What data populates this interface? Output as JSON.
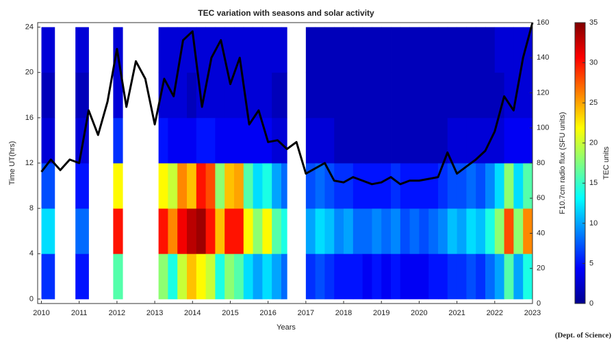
{
  "chart_data": {
    "type": "heatmap",
    "title": "TEC variation with seasons and solar activity",
    "xlabel": "Years",
    "ylabel": "Time UT(hrs)",
    "y2label": "F10.7cm radio flux (SFU units)",
    "colorbar_label": "TEC units",
    "colormap": "jet",
    "xlim": [
      2009.9,
      2023.0
    ],
    "xticks": [
      2010,
      2011,
      2012,
      2013,
      2014,
      2015,
      2016,
      2017,
      2018,
      2019,
      2020,
      2021,
      2022,
      2023
    ],
    "ylim": [
      -0.4,
      24.4
    ],
    "yticks": [
      0,
      4,
      8,
      12,
      16,
      20,
      24
    ],
    "y2lim": [
      0,
      160
    ],
    "y2ticks": [
      0,
      20,
      40,
      60,
      80,
      100,
      120,
      140,
      160
    ],
    "clim": [
      0,
      35
    ],
    "colorbar_ticks": [
      0,
      5,
      10,
      15,
      20,
      25,
      30,
      35
    ],
    "x_edges": [
      2010.0,
      2010.35,
      2010.9,
      2011.25,
      2011.9,
      2012.15,
      2013.1,
      2013.35,
      2013.6,
      2013.85,
      2014.1,
      2014.35,
      2014.6,
      2014.85,
      2015.1,
      2015.35,
      2015.6,
      2015.85,
      2016.1,
      2016.35,
      2016.5,
      2017.0,
      2017.25,
      2017.5,
      2017.75,
      2018.0,
      2018.25,
      2018.5,
      2018.75,
      2019.0,
      2019.25,
      2019.5,
      2019.75,
      2020.0,
      2020.25,
      2020.5,
      2020.75,
      2021.0,
      2021.25,
      2021.5,
      2021.75,
      2022.0,
      2022.25,
      2022.5,
      2022.75,
      2023.0
    ],
    "y_edges": [
      0,
      4,
      8,
      12,
      16,
      20,
      24
    ],
    "z": [
      [
        6,
        12,
        7,
        3,
        2,
        3
      ],
      null,
      [
        5,
        8,
        5,
        3,
        2,
        3
      ],
      null,
      [
        16,
        30,
        22,
        6,
        3,
        3
      ],
      null,
      [
        18,
        30,
        22,
        5,
        3,
        3
      ],
      [
        14,
        26,
        20,
        4,
        3,
        3
      ],
      [
        20,
        31,
        26,
        4,
        3,
        3
      ],
      [
        24,
        33,
        24,
        4,
        2,
        3
      ],
      [
        22,
        34,
        30,
        5,
        3,
        3
      ],
      [
        20,
        30,
        28,
        5,
        3,
        3
      ],
      [
        14,
        24,
        18,
        4,
        3,
        3
      ],
      [
        18,
        30,
        24,
        4,
        3,
        3
      ],
      [
        16,
        30,
        25,
        4,
        3,
        3
      ],
      [
        12,
        22,
        16,
        4,
        3,
        3
      ],
      [
        10,
        18,
        12,
        4,
        3,
        3
      ],
      [
        12,
        22,
        14,
        4,
        3,
        3
      ],
      [
        10,
        16,
        10,
        3,
        2,
        3
      ],
      [
        8,
        14,
        8,
        3,
        2,
        3
      ],
      null,
      [
        6,
        10,
        7,
        3,
        2,
        2
      ],
      [
        7,
        12,
        8,
        3,
        2,
        2
      ],
      [
        6,
        11,
        7,
        3,
        2,
        2
      ],
      [
        5,
        9,
        6,
        2,
        2,
        2
      ],
      [
        5,
        10,
        6,
        2,
        2,
        2
      ],
      [
        5,
        8,
        5,
        2,
        2,
        2
      ],
      [
        4,
        8,
        5,
        2,
        2,
        2
      ],
      [
        5,
        9,
        5,
        2,
        2,
        2
      ],
      [
        4,
        8,
        5,
        2,
        2,
        2
      ],
      [
        5,
        9,
        6,
        2,
        2,
        2
      ],
      [
        4,
        7,
        5,
        2,
        2,
        2
      ],
      [
        4,
        8,
        5,
        2,
        2,
        2
      ],
      [
        4,
        7,
        5,
        2,
        2,
        2
      ],
      [
        5,
        8,
        5,
        2,
        2,
        2
      ],
      [
        5,
        9,
        6,
        2,
        2,
        2
      ],
      [
        6,
        11,
        7,
        3,
        2,
        2
      ],
      [
        6,
        10,
        7,
        3,
        2,
        2
      ],
      [
        7,
        12,
        8,
        3,
        2,
        2
      ],
      [
        6,
        11,
        7,
        3,
        2,
        2
      ],
      [
        8,
        14,
        9,
        3,
        2,
        2
      ],
      [
        10,
        18,
        12,
        3,
        2,
        3
      ],
      [
        16,
        28,
        18,
        4,
        3,
        3
      ],
      [
        10,
        18,
        12,
        4,
        3,
        3
      ],
      [
        14,
        26,
        16,
        4,
        3,
        3
      ]
    ],
    "line": {
      "name": "F10.7",
      "color": "#000000",
      "axis": "y2",
      "x": [
        2010.0,
        2010.25,
        2010.5,
        2010.75,
        2011.0,
        2011.25,
        2011.5,
        2011.75,
        2012.0,
        2012.25,
        2012.5,
        2012.75,
        2013.0,
        2013.25,
        2013.5,
        2013.75,
        2014.0,
        2014.25,
        2014.5,
        2014.75,
        2015.0,
        2015.25,
        2015.5,
        2015.75,
        2016.0,
        2016.25,
        2016.5,
        2016.75,
        2017.0,
        2017.25,
        2017.5,
        2017.75,
        2018.0,
        2018.25,
        2018.5,
        2018.75,
        2019.0,
        2019.25,
        2019.5,
        2019.75,
        2020.0,
        2020.25,
        2020.5,
        2020.75,
        2021.0,
        2021.25,
        2021.5,
        2021.75,
        2022.0,
        2022.25,
        2022.5,
        2022.75,
        2023.0
      ],
      "values": [
        75,
        82,
        76,
        82,
        80,
        110,
        96,
        115,
        145,
        112,
        138,
        128,
        102,
        128,
        118,
        150,
        155,
        112,
        140,
        150,
        125,
        140,
        102,
        110,
        92,
        93,
        88,
        92,
        74,
        77,
        80,
        70,
        69,
        72,
        70,
        68,
        69,
        72,
        68,
        70,
        70,
        71,
        72,
        86,
        74,
        78,
        82,
        87,
        98,
        118,
        110,
        140,
        160
      ]
    },
    "footer": "(Dept. of Science)"
  }
}
